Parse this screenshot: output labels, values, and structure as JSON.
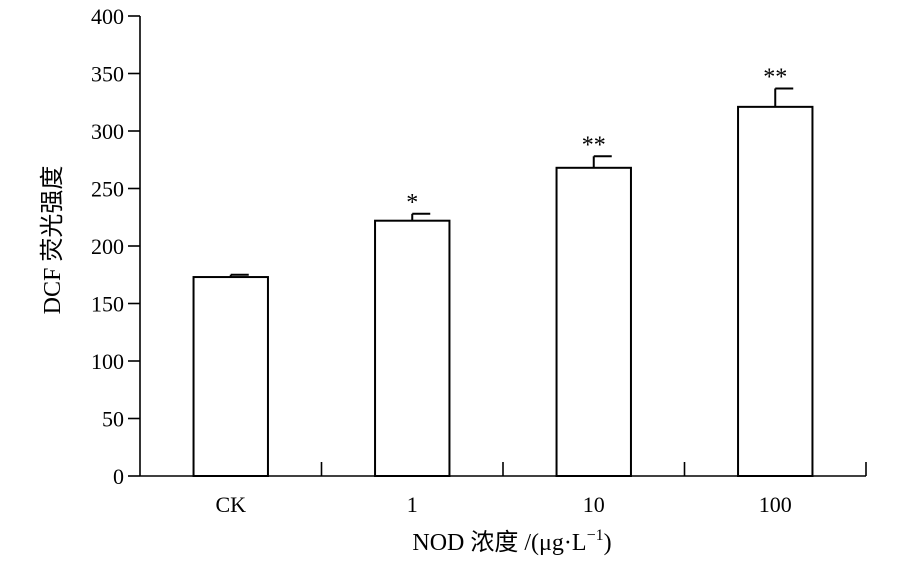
{
  "chart_data": {
    "type": "bar",
    "categories": [
      "CK",
      "1",
      "10",
      "100"
    ],
    "values": [
      173,
      222,
      268,
      321
    ],
    "errors": [
      2,
      6,
      10,
      16
    ],
    "significance": [
      "",
      "*",
      "**",
      "**"
    ],
    "xlabel": "NOD 浓度 /(μg·L",
    "xlabel_sup": "−1",
    "xlabel_close": ")",
    "ylabel": "DCF 荧光强度",
    "ylim": [
      0,
      400
    ],
    "yticks": [
      0,
      50,
      100,
      150,
      200,
      250,
      300,
      350,
      400
    ],
    "grid": false,
    "legend": "none",
    "bar_color": "#ffffff",
    "edge_color": "#000000"
  }
}
